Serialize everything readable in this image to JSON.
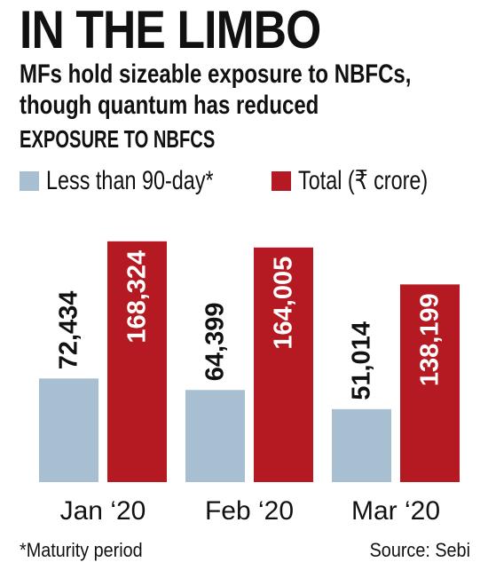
{
  "title": "IN THE LIMBO",
  "subtitle": "MFs hold sizeable exposure to NBFCs, though quantum has reduced",
  "section_title": "EXPOSURE TO NBFCS",
  "colors": {
    "series1": "#a8bfd1",
    "series2": "#b51a22",
    "text": "#111111"
  },
  "legend": [
    {
      "label": "Less than 90-day*",
      "color": "#a8bfd1"
    },
    {
      "label": "Total (₹ crore)",
      "color": "#b51a22"
    }
  ],
  "chart_data": {
    "type": "bar",
    "categories": [
      "Jan ‘20",
      "Feb ‘20",
      "Mar ‘20"
    ],
    "series": [
      {
        "name": "Less than 90-day*",
        "values": [
          72434,
          64399,
          51014
        ],
        "labels": [
          "72,434",
          "64,399",
          "51,014"
        ]
      },
      {
        "name": "Total (₹ crore)",
        "values": [
          168324,
          164005,
          138199
        ],
        "labels": [
          "168,324",
          "164,005",
          "138,199"
        ]
      }
    ],
    "ylim": [
      0,
      180000
    ],
    "grid": false,
    "legend_position": "top-left"
  },
  "footnote": "*Maturity period",
  "source": "Source: Sebi"
}
